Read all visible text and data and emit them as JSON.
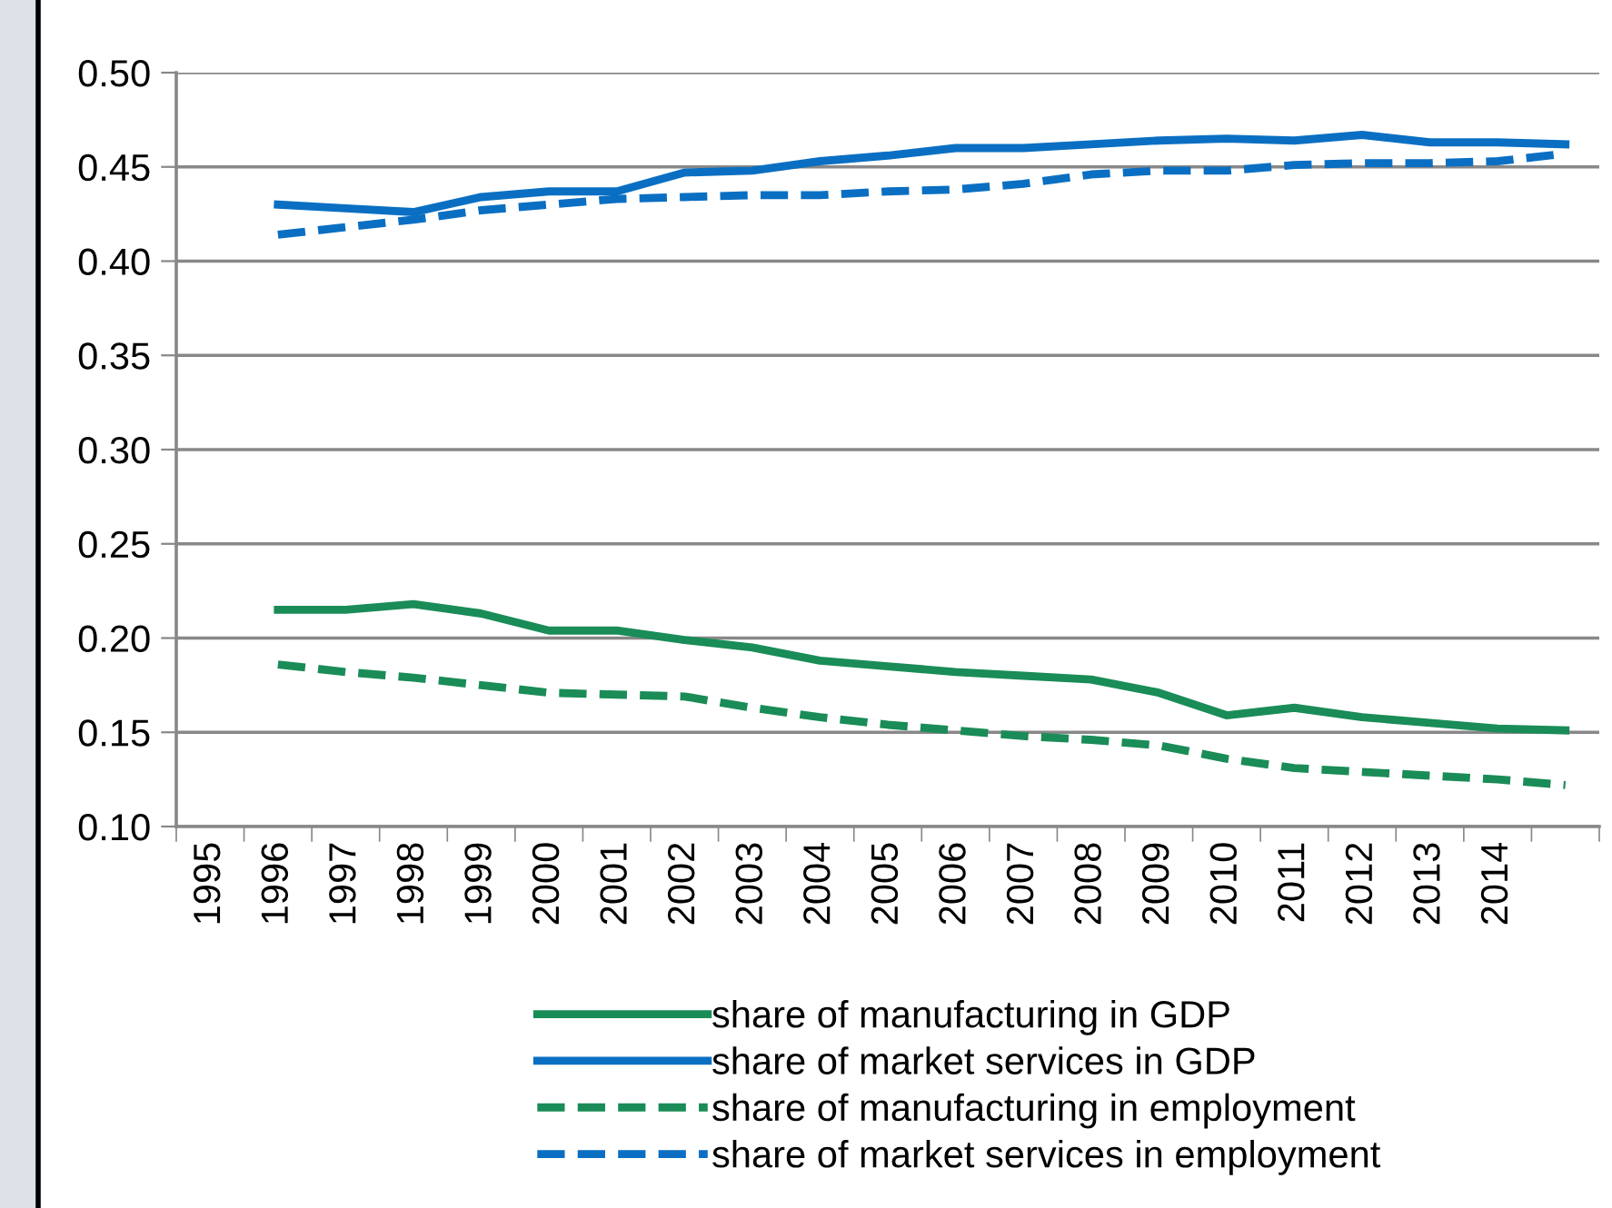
{
  "chart_data": {
    "type": "line",
    "categories": [
      "1995",
      "1996",
      "1997",
      "1998",
      "1999",
      "2000",
      "2001",
      "2002",
      "2003",
      "2004",
      "2005",
      "2006",
      "2007",
      "2008",
      "2009",
      "2010",
      "2011",
      "2012",
      "2013",
      "2014",
      null
    ],
    "ylim": [
      0.1,
      0.5
    ],
    "yticks": [
      {
        "value": 0.1,
        "label": "0.10"
      },
      {
        "value": 0.15,
        "label": "0.15"
      },
      {
        "value": 0.2,
        "label": "0.20"
      },
      {
        "value": 0.25,
        "label": "0.25"
      },
      {
        "value": 0.3,
        "label": "0.30"
      },
      {
        "value": 0.35,
        "label": "0.35"
      },
      {
        "value": 0.4,
        "label": "0.40"
      },
      {
        "value": 0.45,
        "label": "0.45"
      },
      {
        "value": 0.5,
        "label": "0.50"
      }
    ],
    "grid": "y",
    "legend": "bottom",
    "marker": "none",
    "series": [
      {
        "name": "share of manufacturing in GDP",
        "color": "#1a8c57",
        "line_style": "solid",
        "values": [
          null,
          0.215,
          0.215,
          0.218,
          0.213,
          0.204,
          0.204,
          0.199,
          0.195,
          0.188,
          0.185,
          0.182,
          0.18,
          0.178,
          0.171,
          0.159,
          0.163,
          0.158,
          0.155,
          0.152,
          0.151
        ]
      },
      {
        "name": "share of market services in GDP",
        "color": "#0a6fc2",
        "line_style": "solid",
        "values": [
          null,
          0.43,
          0.428,
          0.426,
          0.434,
          0.437,
          0.437,
          0.447,
          0.448,
          0.453,
          0.456,
          0.46,
          0.46,
          0.462,
          0.464,
          0.465,
          0.464,
          0.467,
          0.463,
          0.463,
          0.462
        ]
      },
      {
        "name": "share of manufacturing in employment",
        "color": "#1a8c57",
        "line_style": "dashed",
        "values": [
          null,
          0.186,
          0.182,
          0.179,
          0.175,
          0.171,
          0.17,
          0.169,
          0.163,
          0.158,
          0.154,
          0.151,
          0.148,
          0.146,
          0.143,
          0.136,
          0.131,
          0.129,
          0.127,
          0.125,
          0.122
        ]
      },
      {
        "name": "share of market services in employment",
        "color": "#0a6fc2",
        "line_style": "dashed",
        "values": [
          null,
          0.414,
          0.418,
          0.422,
          0.427,
          0.43,
          0.433,
          0.434,
          0.435,
          0.435,
          0.437,
          0.438,
          0.441,
          0.446,
          0.448,
          0.448,
          0.451,
          0.452,
          0.452,
          0.453,
          0.457
        ]
      }
    ]
  }
}
